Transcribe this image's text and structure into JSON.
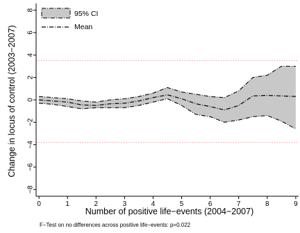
{
  "chart_data": {
    "type": "area",
    "xlabel": "Number of positive life−events (2004−2007)",
    "ylabel": "Change in locus of control (2003−2007)",
    "note": "F−Test on no differences across positive life−events: p=0.022",
    "xlim": [
      -0.1,
      9.1
    ],
    "ylim": [
      -8.6,
      8.6
    ],
    "x_ticks": [
      0,
      1,
      2,
      3,
      4,
      5,
      6,
      7,
      8,
      9
    ],
    "y_ticks": [
      -8,
      -6,
      -4,
      -2,
      0,
      2,
      4,
      6,
      8
    ],
    "y_tick_labels": [
      "−8",
      "−6",
      "−4",
      "−2",
      "0",
      "2",
      "4",
      "6",
      "8"
    ],
    "grid": false,
    "legend_position": "top-left",
    "reference_lines": [
      3.5,
      -3.8
    ],
    "reference_line_color": "#e8a0a0",
    "band_fill_color": "#c8c8c8",
    "line_color": "#000000",
    "series": [
      {
        "name": "95% CI",
        "style": "band",
        "x": [
          0,
          0.5,
          1,
          1.5,
          2,
          2.5,
          3,
          3.5,
          4,
          4.5,
          5,
          5.5,
          6,
          6.5,
          7,
          7.5,
          8,
          8.5,
          9
        ],
        "upper": [
          0.3,
          0.2,
          0.1,
          -0.1,
          -0.2,
          0.0,
          0.1,
          0.3,
          0.6,
          1.1,
          0.7,
          0.5,
          0.3,
          0.2,
          0.8,
          2.0,
          2.2,
          3.0,
          3.0
        ],
        "lower": [
          -0.3,
          -0.4,
          -0.6,
          -0.8,
          -0.7,
          -0.7,
          -0.7,
          -0.5,
          -0.2,
          0.1,
          -0.5,
          -1.3,
          -1.5,
          -2.0,
          -1.8,
          -1.5,
          -1.4,
          -1.9,
          -2.6
        ]
      },
      {
        "name": "Mean",
        "style": "line",
        "x": [
          0,
          0.5,
          1,
          1.5,
          2,
          2.5,
          3,
          3.5,
          4,
          4.5,
          5,
          5.5,
          6,
          6.5,
          7,
          7.5,
          8,
          8.5,
          9
        ],
        "values": [
          0.0,
          -0.1,
          -0.2,
          -0.45,
          -0.5,
          -0.35,
          -0.3,
          -0.1,
          0.2,
          0.45,
          0.1,
          -0.35,
          -0.6,
          -0.9,
          -0.5,
          0.35,
          0.4,
          0.35,
          0.3
        ]
      }
    ]
  }
}
